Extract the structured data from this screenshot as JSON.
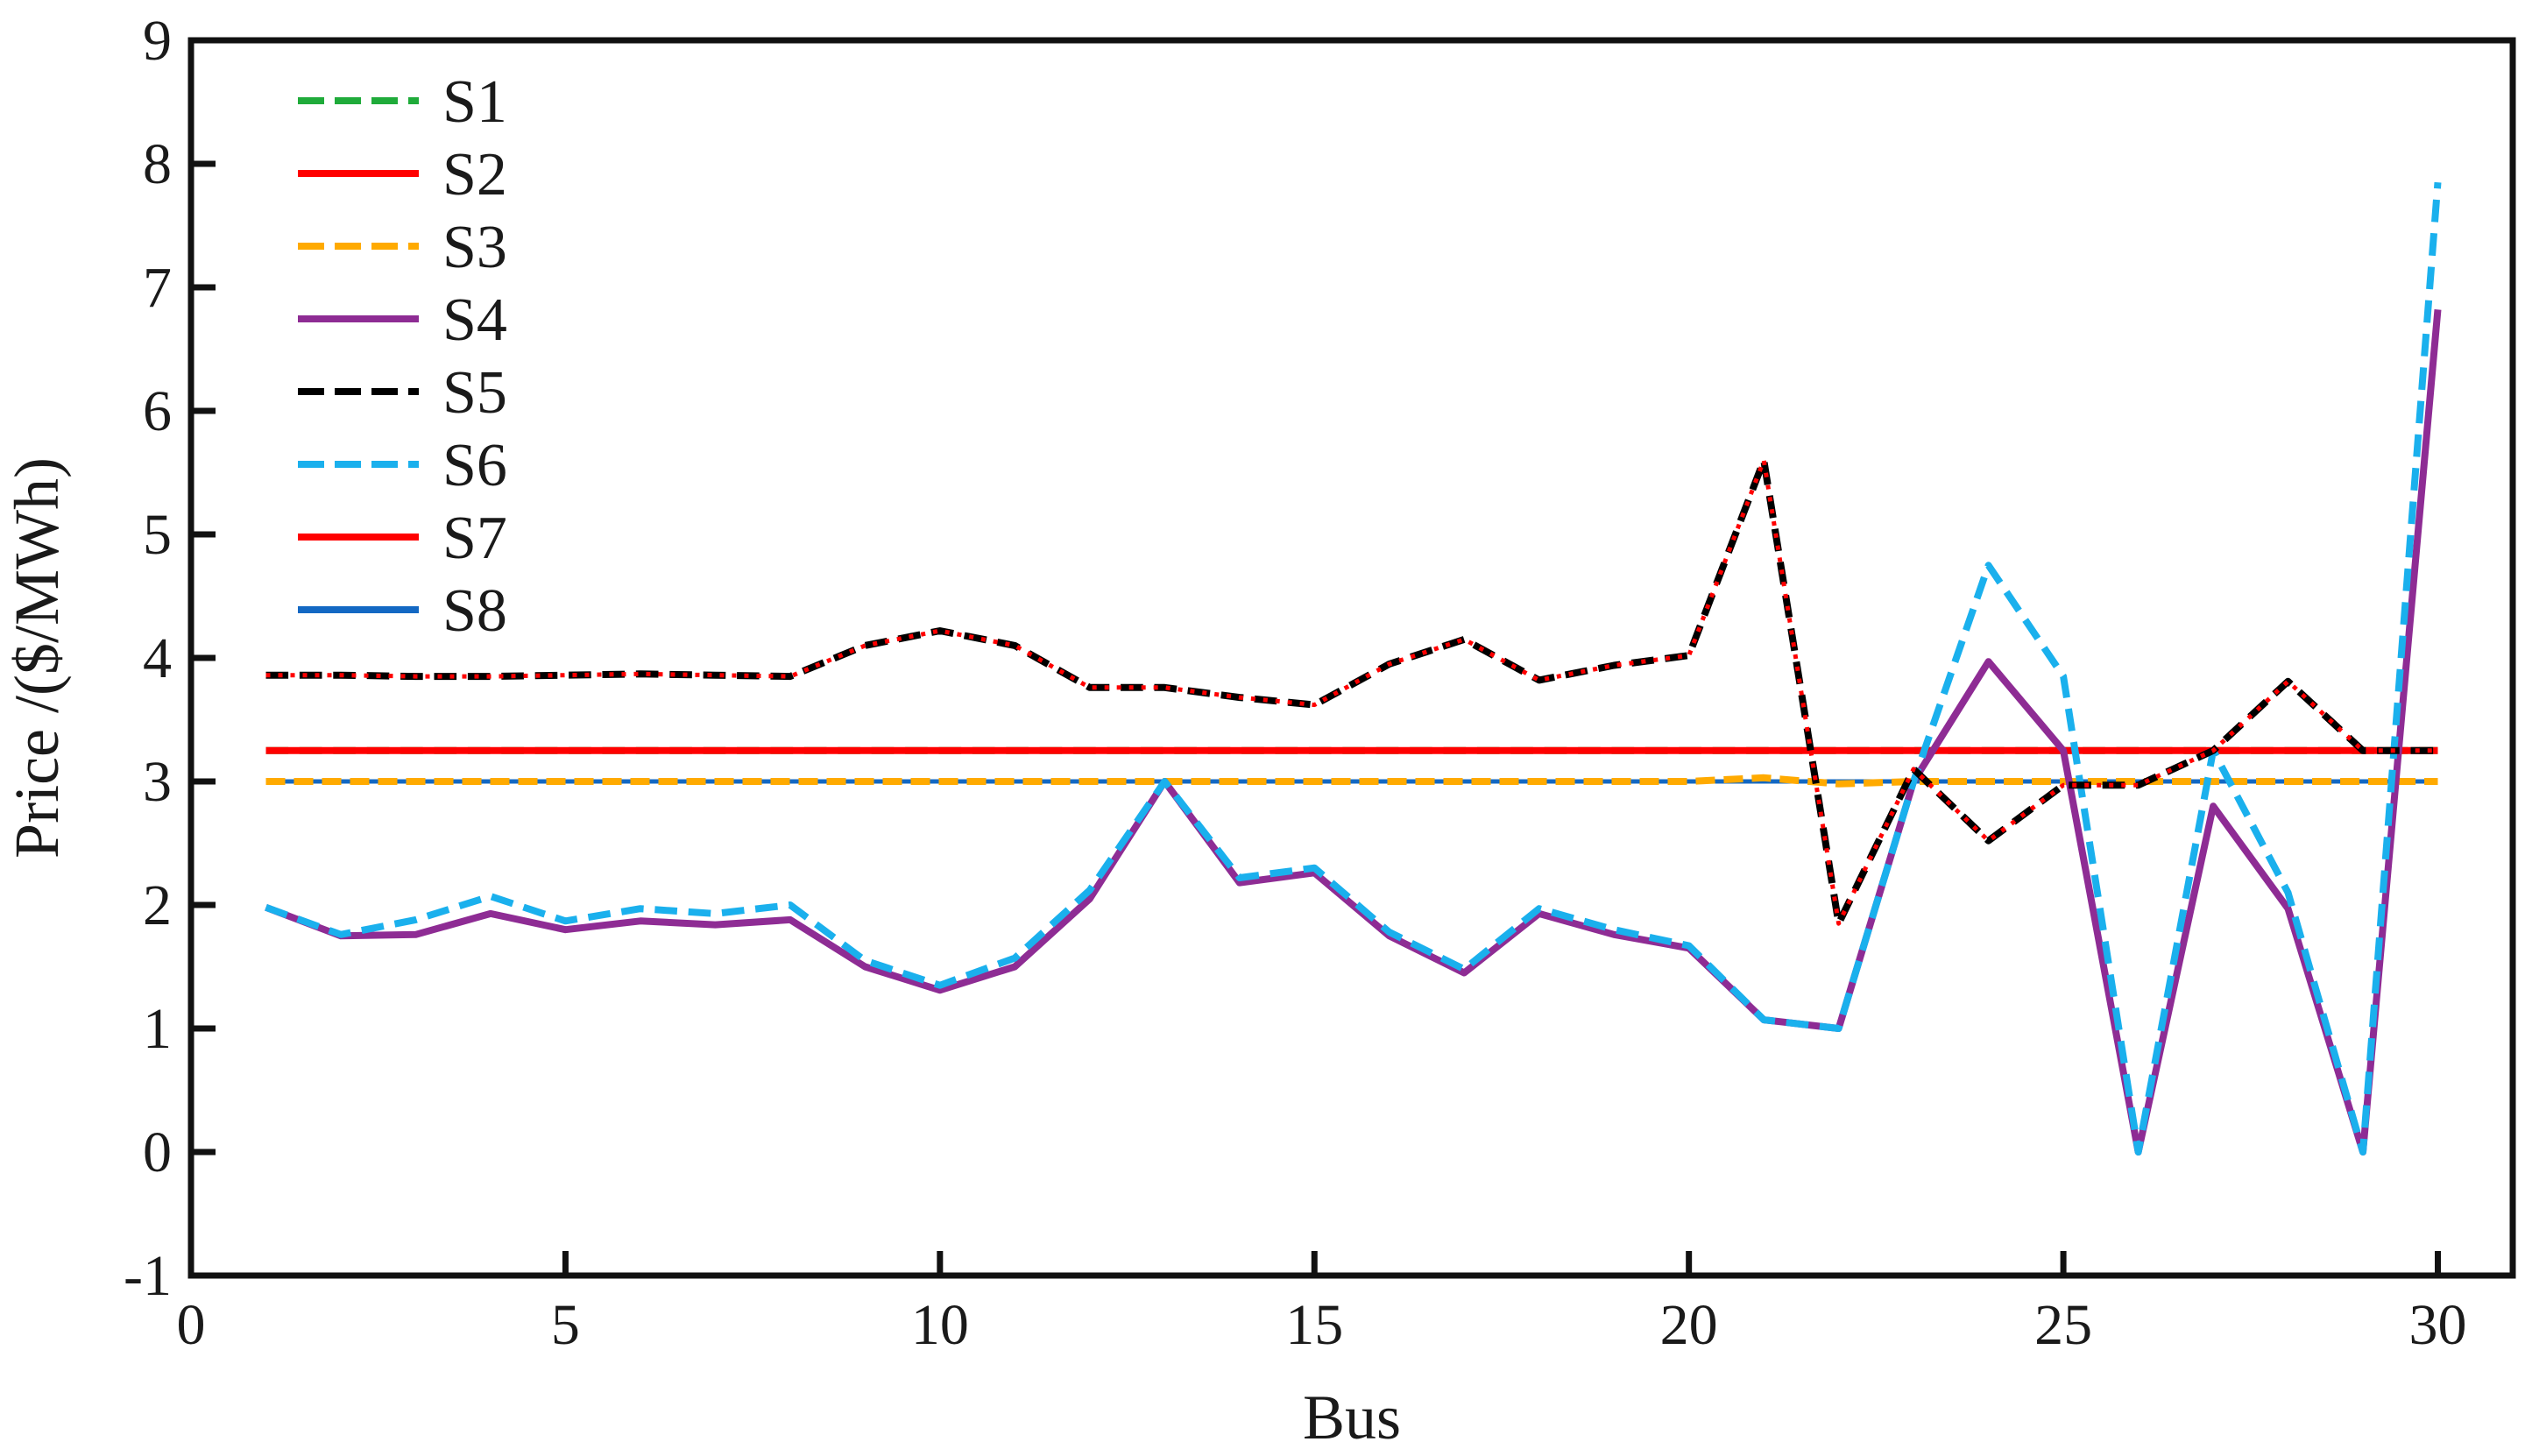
{
  "chart_data": {
    "type": "line",
    "xlabel": "Bus",
    "ylabel": "Price /($/MWh)",
    "xlim": [
      0,
      31
    ],
    "ylim": [
      -1,
      9
    ],
    "xticks": [
      "0",
      "5",
      "10",
      "15",
      "20",
      "25",
      "30"
    ],
    "yticks": [
      "-1",
      "0",
      "1",
      "2",
      "3",
      "4",
      "5",
      "6",
      "7",
      "8",
      "9"
    ],
    "xtick_values": [
      0,
      5,
      10,
      15,
      20,
      25,
      30
    ],
    "ytick_values": [
      -1,
      0,
      1,
      2,
      3,
      4,
      5,
      6,
      7,
      8,
      9
    ],
    "grid": false,
    "legend_position": "top-left",
    "x": [
      1,
      2,
      3,
      4,
      5,
      6,
      7,
      8,
      9,
      10,
      11,
      12,
      13,
      14,
      15,
      16,
      17,
      18,
      19,
      20,
      21,
      22,
      23,
      24,
      25,
      26,
      27,
      28,
      29,
      30
    ],
    "series": [
      {
        "name": "S1",
        "color": "#1fab3a",
        "dash": "dashed",
        "values": [
          3.25,
          3.25,
          3.25,
          3.25,
          3.25,
          3.25,
          3.25,
          3.25,
          3.25,
          3.25,
          3.25,
          3.25,
          3.25,
          3.25,
          3.25,
          3.25,
          3.25,
          3.25,
          3.25,
          3.25,
          3.25,
          3.25,
          3.25,
          3.25,
          3.25,
          3.25,
          3.25,
          3.25,
          3.25,
          3.25
        ]
      },
      {
        "name": "S2",
        "color": "#ff0000",
        "dash": "solid",
        "values": [
          3.25,
          3.25,
          3.25,
          3.25,
          3.25,
          3.25,
          3.25,
          3.25,
          3.25,
          3.25,
          3.25,
          3.25,
          3.25,
          3.25,
          3.25,
          3.25,
          3.25,
          3.25,
          3.25,
          3.25,
          3.25,
          3.25,
          3.25,
          3.25,
          3.25,
          3.25,
          3.25,
          3.25,
          3.25,
          3.25
        ]
      },
      {
        "name": "S3",
        "color": "#ffaa00",
        "dash": "dashed",
        "values": [
          3.0,
          3.0,
          3.0,
          3.0,
          3.0,
          3.0,
          3.0,
          3.0,
          3.0,
          3.0,
          3.0,
          3.0,
          3.0,
          3.0,
          3.0,
          3.0,
          3.0,
          3.0,
          3.0,
          3.0,
          3.03,
          2.98,
          3.0,
          3.0,
          3.0,
          3.0,
          3.0,
          3.0,
          3.0,
          3.0
        ]
      },
      {
        "name": "S4",
        "color": "#8e2c94",
        "dash": "solid",
        "values": [
          1.98,
          1.75,
          1.76,
          1.93,
          1.8,
          1.87,
          1.84,
          1.88,
          1.5,
          1.31,
          1.5,
          2.05,
          3.0,
          2.18,
          2.26,
          1.75,
          1.45,
          1.93,
          1.76,
          1.65,
          1.07,
          1.0,
          3.0,
          3.97,
          3.25,
          0.0,
          2.8,
          1.97,
          0.0,
          6.82
        ]
      },
      {
        "name": "S5",
        "color": "#000000",
        "dash": "dashed",
        "values": [
          3.86,
          3.86,
          3.85,
          3.85,
          3.86,
          3.87,
          3.86,
          3.85,
          4.1,
          4.22,
          4.1,
          3.76,
          3.76,
          3.68,
          3.62,
          3.95,
          4.15,
          3.82,
          3.94,
          4.02,
          5.6,
          1.85,
          3.1,
          2.52,
          2.97,
          2.97,
          3.25,
          3.81,
          3.25,
          3.25
        ]
      },
      {
        "name": "S6",
        "color": "#1ab0ed",
        "dash": "dashed",
        "values": [
          1.98,
          1.76,
          1.88,
          2.07,
          1.87,
          1.97,
          1.93,
          2.0,
          1.55,
          1.35,
          1.57,
          2.12,
          3.0,
          2.22,
          2.3,
          1.78,
          1.48,
          1.97,
          1.8,
          1.67,
          1.07,
          1.0,
          3.0,
          4.75,
          3.85,
          0.0,
          3.25,
          2.1,
          0.0,
          7.85
        ]
      },
      {
        "name": "S7",
        "color": "#ff0000",
        "dash": "solid",
        "values": [
          3.86,
          3.86,
          3.85,
          3.85,
          3.86,
          3.87,
          3.86,
          3.85,
          4.1,
          4.22,
          4.1,
          3.76,
          3.76,
          3.68,
          3.62,
          3.95,
          4.15,
          3.82,
          3.94,
          4.02,
          5.6,
          1.85,
          3.1,
          2.52,
          2.97,
          2.97,
          3.25,
          3.81,
          3.25,
          3.25
        ]
      },
      {
        "name": "S8",
        "color": "#1368c3",
        "dash": "solid",
        "values": [
          3.0,
          3.0,
          3.0,
          3.0,
          3.0,
          3.0,
          3.0,
          3.0,
          3.0,
          3.0,
          3.0,
          3.0,
          3.0,
          3.0,
          3.0,
          3.0,
          3.0,
          3.0,
          3.0,
          3.0,
          3.0,
          3.0,
          3.0,
          3.0,
          3.0,
          3.0,
          3.0,
          3.0,
          3.0,
          3.0
        ]
      }
    ]
  }
}
